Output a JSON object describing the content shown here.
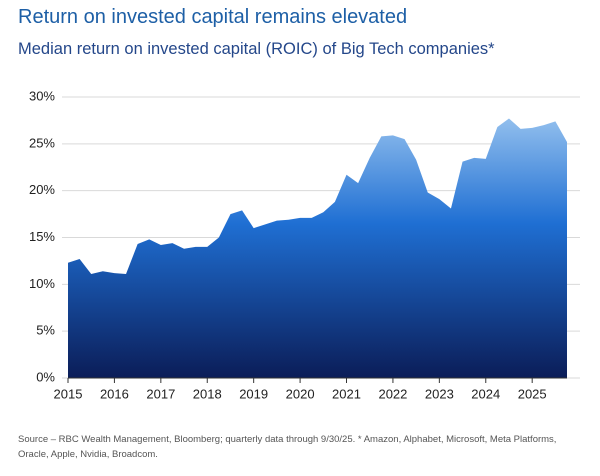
{
  "chart_data": {
    "type": "area",
    "title": "Return on invested capital remains elevated",
    "subtitle": "Median return on invested capital (ROIC) of Big Tech companies*",
    "note": "Source – RBC Wealth Management, Bloomberg; quarterly data through 9/30/25. * Amazon, Alphabet, Microsoft, Meta Platforms, Oracle, Apple, Nvidia, Broadcom.",
    "x": [
      2015,
      2015.25,
      2015.5,
      2015.75,
      2016,
      2016.25,
      2016.5,
      2016.75,
      2017,
      2017.25,
      2017.5,
      2017.75,
      2018,
      2018.25,
      2018.5,
      2018.75,
      2019,
      2019.25,
      2019.5,
      2019.75,
      2020,
      2020.25,
      2020.5,
      2020.75,
      2021,
      2021.25,
      2021.5,
      2021.75,
      2022,
      2022.25,
      2022.5,
      2022.75,
      2023,
      2023.25,
      2023.5,
      2023.75,
      2024,
      2024.25,
      2024.5,
      2024.75,
      2025,
      2025.25,
      2025.5,
      2025.75
    ],
    "values": [
      12.3,
      12.7,
      11.1,
      11.4,
      11.2,
      11.1,
      14.3,
      14.8,
      14.2,
      14.4,
      13.8,
      14.0,
      14.0,
      15.0,
      17.5,
      17.9,
      16.0,
      16.4,
      16.8,
      16.9,
      17.1,
      17.1,
      17.7,
      18.8,
      21.7,
      20.8,
      23.5,
      25.8,
      25.9,
      25.5,
      23.3,
      19.8,
      19.1,
      18.1,
      23.1,
      23.5,
      23.4,
      26.8,
      27.7,
      26.6,
      26.7,
      27.0,
      27.4,
      25.2
    ],
    "gradient": [
      "#a9cff3",
      "#1f6fd3",
      "#0b1d58"
    ],
    "xlim": [
      2015,
      2025.75
    ],
    "xticks": [
      2015,
      2016,
      2017,
      2018,
      2019,
      2020,
      2021,
      2022,
      2023,
      2024,
      2025
    ],
    "ylim": [
      0,
      30
    ],
    "yticks": [
      {
        "value": 0,
        "label": "0%"
      },
      {
        "value": 5,
        "label": "5%"
      },
      {
        "value": 10,
        "label": "10%"
      },
      {
        "value": 15,
        "label": "15%"
      },
      {
        "value": 20,
        "label": "20%"
      },
      {
        "value": 25,
        "label": "25%"
      },
      {
        "value": 30,
        "label": "30%"
      }
    ],
    "grid": true
  }
}
